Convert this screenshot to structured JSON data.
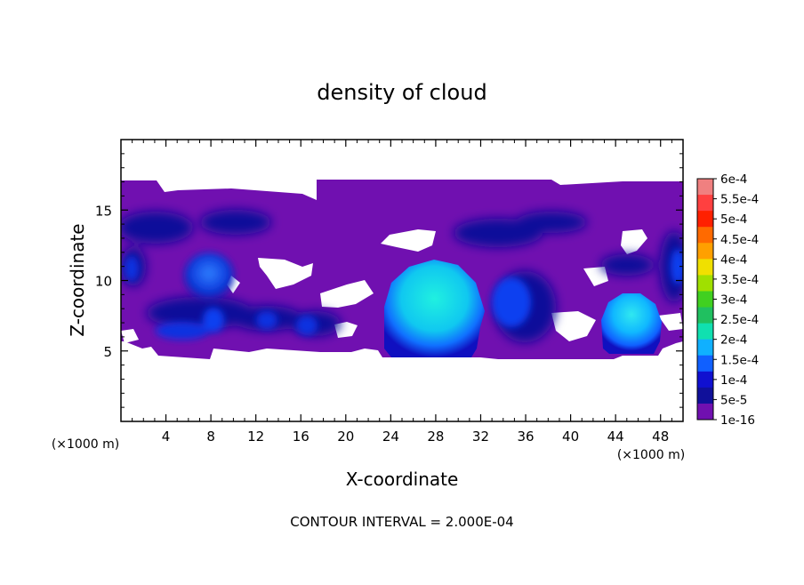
{
  "chart_data": {
    "type": "heatmap",
    "title": "density of cloud",
    "xlabel": "X-coordinate",
    "ylabel": "Z-coordinate",
    "x_unit_left": "(×1000 m)",
    "x_unit_right": "(×1000 m)",
    "xlim": [
      0,
      50
    ],
    "ylim": [
      0,
      20
    ],
    "x_ticks": [
      4,
      8,
      12,
      16,
      20,
      24,
      28,
      32,
      36,
      40,
      44,
      48
    ],
    "y_ticks": [
      5,
      10,
      15
    ],
    "footer": "CONTOUR INTERVAL = 2.000E-04",
    "colorbar": {
      "labels": [
        "6e-4",
        "5.5e-4",
        "5e-4",
        "4.5e-4",
        "4e-4",
        "3.5e-4",
        "3e-4",
        "2.5e-4",
        "2e-4",
        "1.5e-4",
        "1e-4",
        "5e-5",
        "1e-16"
      ],
      "colors": [
        "#f08080",
        "#ff4040",
        "#ff2000",
        "#ff6a00",
        "#ffa000",
        "#f0e000",
        "#a0e000",
        "#40d020",
        "#20c060",
        "#10e0b0",
        "#10b0ff",
        "#1060ff",
        "#1010d0",
        "#10109a",
        "#7010b0"
      ]
    },
    "regions": [
      {
        "level": "5e-5",
        "x": [
          0.5,
          6
        ],
        "z": [
          12.5,
          14.5
        ]
      },
      {
        "level": "5e-5",
        "x": [
          7,
          15
        ],
        "z": [
          13,
          15
        ]
      },
      {
        "level": "1e-4",
        "x": [
          6,
          10
        ],
        "z": [
          9,
          12
        ]
      },
      {
        "level": "5e-5",
        "x": [
          1,
          24
        ],
        "z": [
          5.5,
          8
        ]
      },
      {
        "level": "2e-4",
        "x": [
          25,
          31
        ],
        "z": [
          5,
          11.5
        ]
      },
      {
        "level": "1e-4",
        "x": [
          32,
          37
        ],
        "z": [
          6,
          11
        ]
      },
      {
        "level": "1.5e-4",
        "x": [
          43.5,
          48.5
        ],
        "z": [
          5,
          9
        ]
      },
      {
        "level": "5e-5",
        "x": [
          48,
          50
        ],
        "z": [
          9,
          12
        ]
      },
      {
        "level": "1e-16",
        "x": [
          0,
          50
        ],
        "z": [
          4.5,
          17
        ]
      }
    ]
  }
}
